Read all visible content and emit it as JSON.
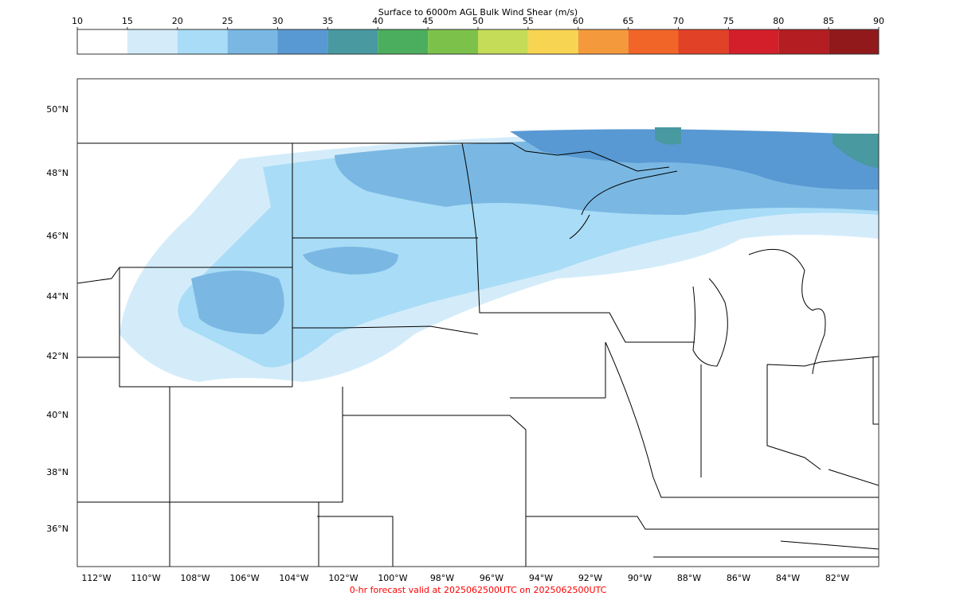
{
  "title": "Surface to 6000m AGL Bulk Wind Shear (m/s)",
  "colorbar": {
    "ticks": [
      10,
      15,
      20,
      25,
      30,
      35,
      40,
      45,
      50,
      55,
      60,
      65,
      70,
      75,
      80,
      85,
      90
    ],
    "colors": [
      "#ffffff",
      "#d4ecfa",
      "#a9dcf6",
      "#7ab8e3",
      "#5899d3",
      "#4899a0",
      "#4aae5e",
      "#7cc24a",
      "#c4dc58",
      "#f8d453",
      "#f59a3c",
      "#f16528",
      "#e14126",
      "#d21f2a",
      "#b41d21",
      "#91191b"
    ]
  },
  "map": {
    "lon_labels": [
      "112°W",
      "110°W",
      "108°W",
      "106°W",
      "104°W",
      "102°W",
      "100°W",
      "98°W",
      "96°W",
      "94°W",
      "92°W",
      "90°W",
      "88°W",
      "86°W",
      "84°W",
      "82°W"
    ],
    "lat_labels": [
      "50°N",
      "48°N",
      "46°N",
      "44°N",
      "42°N",
      "40°N",
      "38°N",
      "36°N"
    ]
  },
  "footer": "0-hr forecast valid at 2025062500UTC on 2025062500UTC"
}
